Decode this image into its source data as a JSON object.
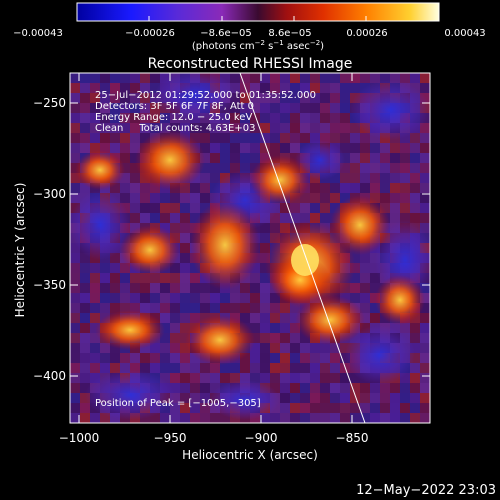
{
  "colorbar": {
    "ticks": [
      "−0.00043",
      "−0.00026",
      "−8.6e−05",
      "8.6e−05",
      "0.00026",
      "0.00043"
    ],
    "units_prefix": "(photons cm",
    "units_exp1": "−2",
    "units_mid": " s",
    "units_exp2": "−1",
    "units_mid2": " asec",
    "units_exp3": "−2",
    "units_suffix": ")"
  },
  "plot": {
    "title": "Reconstructed RHESSI Image",
    "annotation_lines": [
      "25−Jul−2012 01:29:52.000 to 01:35:52.000",
      "Detectors: 3F 5F 6F 7F 8F, Att 0",
      "Energy Range: 12.0 − 25.0 keV",
      "Clean     Total counts: 4.63E+03"
    ],
    "peak_label": "Position of Peak = [−1005,−305]",
    "xlabel": "Heliocentric X (arcsec)",
    "ylabel": "Heliocentric Y (arcsec)",
    "xticks": [
      "−1000",
      "−950",
      "−900",
      "−850"
    ],
    "yticks": [
      "−250",
      "−300",
      "−350",
      "−400"
    ]
  },
  "footer": {
    "timestamp": "12−May−2022 23:03"
  }
}
